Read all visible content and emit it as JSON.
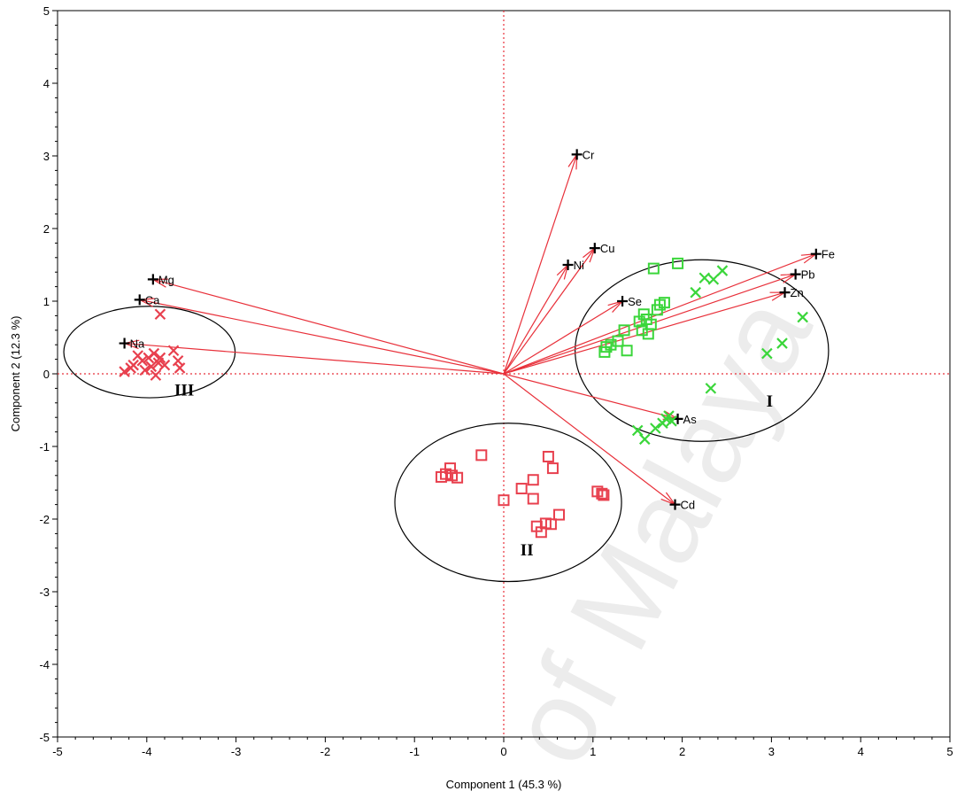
{
  "chart_data": {
    "type": "scatter",
    "subtype": "pca-biplot",
    "xlabel": "Component 1 (45.3 %)",
    "ylabel": "Component 2 (12.3 %)",
    "xlim": [
      -5,
      5
    ],
    "ylim": [
      -5,
      5
    ],
    "xticks": [
      -5,
      -4,
      -3,
      -2,
      -1,
      0,
      1,
      2,
      3,
      4,
      5
    ],
    "yticks": [
      -5,
      -4,
      -3,
      -2,
      -1,
      0,
      1,
      2,
      3,
      4,
      5
    ],
    "reference_lines": {
      "x": 0,
      "y": 0,
      "style": "dotted",
      "color": "#e8303a"
    },
    "colors": {
      "red": "#e8404e",
      "green": "#3ad63a",
      "loading": "#e8303a",
      "ellipse": "#000000"
    },
    "loadings": [
      {
        "label": "Cr",
        "x": 0.82,
        "y": 3.02
      },
      {
        "label": "Cu",
        "x": 1.02,
        "y": 1.73
      },
      {
        "label": "Ni",
        "x": 0.72,
        "y": 1.5
      },
      {
        "label": "Se",
        "x": 1.33,
        "y": 1.0
      },
      {
        "label": "Fe",
        "x": 3.5,
        "y": 1.65
      },
      {
        "label": "Pb",
        "x": 3.27,
        "y": 1.37
      },
      {
        "label": "Zn",
        "x": 3.15,
        "y": 1.12
      },
      {
        "label": "As",
        "x": 1.95,
        "y": -0.62
      },
      {
        "label": "Cd",
        "x": 1.92,
        "y": -1.8
      },
      {
        "label": "Mg",
        "x": -3.93,
        "y": 1.3
      },
      {
        "label": "Ca",
        "x": -4.08,
        "y": 1.02
      },
      {
        "label": "Na",
        "x": -4.25,
        "y": 0.42
      }
    ],
    "series": [
      {
        "marker": "x",
        "color": "red",
        "points": [
          [
            -3.85,
            0.82
          ],
          [
            -4.25,
            0.03
          ],
          [
            -4.15,
            0.12
          ],
          [
            -4.1,
            0.25
          ],
          [
            -4.05,
            0.18
          ],
          [
            -4.02,
            0.05
          ],
          [
            -3.98,
            0.22
          ],
          [
            -3.95,
            0.1
          ],
          [
            -3.92,
            0.28
          ],
          [
            -3.9,
            -0.02
          ],
          [
            -3.87,
            0.15
          ],
          [
            -3.85,
            0.22
          ],
          [
            -3.8,
            0.12
          ],
          [
            -3.7,
            0.32
          ],
          [
            -3.65,
            0.18
          ],
          [
            -3.63,
            0.08
          ],
          [
            -4.18,
            0.08
          ]
        ]
      },
      {
        "marker": "square",
        "color": "red",
        "points": [
          [
            -0.7,
            -1.42
          ],
          [
            -0.65,
            -1.38
          ],
          [
            -0.6,
            -1.3
          ],
          [
            -0.58,
            -1.4
          ],
          [
            -0.52,
            -1.43
          ],
          [
            -0.25,
            -1.12
          ],
          [
            0.0,
            -1.74
          ],
          [
            0.2,
            -1.58
          ],
          [
            0.33,
            -1.46
          ],
          [
            0.33,
            -1.72
          ],
          [
            0.37,
            -2.1
          ],
          [
            0.42,
            -2.18
          ],
          [
            0.47,
            -2.06
          ],
          [
            0.5,
            -1.14
          ],
          [
            0.53,
            -2.07
          ],
          [
            0.55,
            -1.3
          ],
          [
            0.62,
            -1.94
          ],
          [
            1.05,
            -1.62
          ],
          [
            1.1,
            -1.65
          ],
          [
            1.12,
            -1.67
          ]
        ]
      },
      {
        "marker": "square",
        "color": "green",
        "points": [
          [
            1.13,
            0.3
          ],
          [
            1.15,
            0.37
          ],
          [
            1.2,
            0.4
          ],
          [
            1.28,
            0.45
          ],
          [
            1.35,
            0.6
          ],
          [
            1.38,
            0.32
          ],
          [
            1.55,
            0.6
          ],
          [
            1.57,
            0.82
          ],
          [
            1.6,
            0.75
          ],
          [
            1.62,
            0.55
          ],
          [
            1.65,
            0.68
          ],
          [
            1.68,
            1.45
          ],
          [
            1.72,
            0.88
          ],
          [
            1.75,
            0.95
          ],
          [
            1.8,
            0.98
          ],
          [
            1.95,
            1.52
          ],
          [
            1.52,
            0.72
          ]
        ]
      },
      {
        "marker": "x",
        "color": "green",
        "points": [
          [
            2.15,
            1.12
          ],
          [
            2.25,
            1.32
          ],
          [
            2.35,
            1.3
          ],
          [
            2.45,
            1.42
          ],
          [
            3.35,
            0.78
          ],
          [
            3.12,
            0.42
          ],
          [
            2.95,
            0.28
          ],
          [
            2.32,
            -0.2
          ],
          [
            1.5,
            -0.78
          ],
          [
            1.58,
            -0.9
          ],
          [
            1.7,
            -0.75
          ],
          [
            1.78,
            -0.68
          ],
          [
            1.82,
            -0.62
          ],
          [
            1.88,
            -0.65
          ],
          [
            1.85,
            -0.58
          ]
        ]
      }
    ],
    "ellipses": [
      {
        "label": "I",
        "cx": 2.22,
        "cy": 0.32,
        "rx": 1.42,
        "ry": 1.25,
        "label_x": 2.98,
        "label_y": -0.45
      },
      {
        "label": "II",
        "cx": 0.05,
        "cy": -1.77,
        "rx": 1.27,
        "ry": 1.09,
        "label_x": 0.26,
        "label_y": -2.5
      },
      {
        "label": "III",
        "cx": -3.97,
        "cy": 0.3,
        "rx": 0.96,
        "ry": 0.63,
        "label_x": -3.58,
        "label_y": -0.3
      }
    ]
  },
  "watermark": "of Malaya"
}
